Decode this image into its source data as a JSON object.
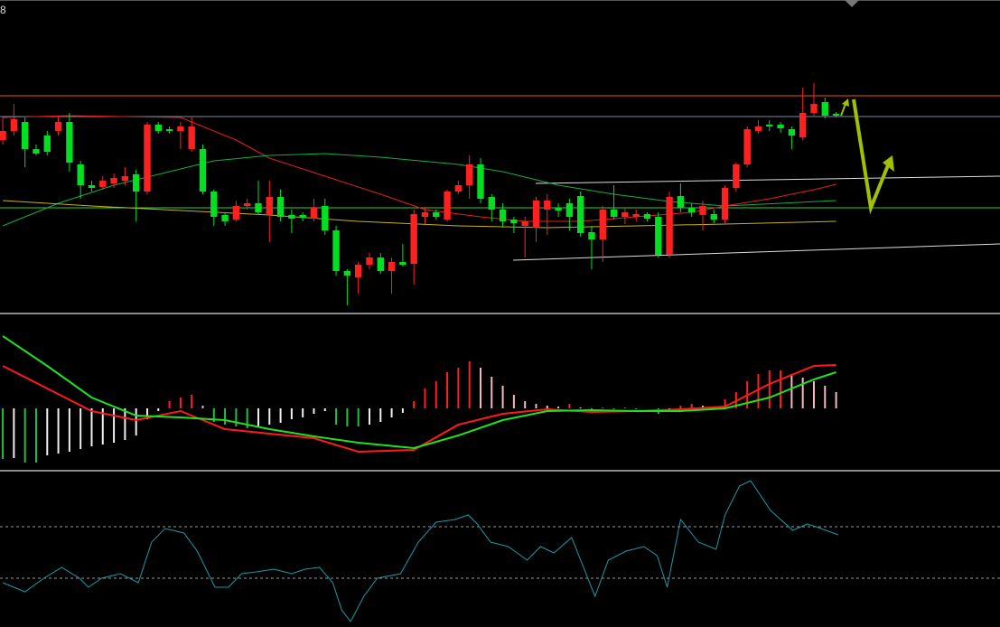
{
  "label": "8",
  "chart_data": [
    {
      "type": "candlestick",
      "xlim": [
        -0.25,
        89.75
      ],
      "ylim": [
        5,
        350
      ],
      "up_color": "#ff2020",
      "down_color": "#00e020",
      "ohlc": [
        [
          195,
          220,
          190,
          205
        ],
        [
          205,
          235,
          200,
          218
        ],
        [
          215,
          220,
          165,
          185
        ],
        [
          185,
          190,
          178,
          180
        ],
        [
          200,
          205,
          178,
          182
        ],
        [
          205,
          220,
          200,
          215
        ],
        [
          215,
          225,
          160,
          170
        ],
        [
          168,
          172,
          130,
          145
        ],
        [
          145,
          150,
          138,
          142
        ],
        [
          143,
          155,
          140,
          150
        ],
        [
          147,
          158,
          142,
          153
        ],
        [
          150,
          165,
          145,
          155
        ],
        [
          157,
          162,
          105,
          138
        ],
        [
          138,
          215,
          135,
          212
        ],
        [
          212,
          215,
          202,
          205
        ],
        [
          207,
          210,
          202,
          205
        ],
        [
          205,
          215,
          185,
          210
        ],
        [
          185,
          220,
          182,
          210
        ],
        [
          185,
          190,
          135,
          138
        ],
        [
          138,
          140,
          100,
          110
        ],
        [
          112,
          115,
          100,
          105
        ],
        [
          107,
          128,
          105,
          122
        ],
        [
          122,
          130,
          118,
          125
        ],
        [
          125,
          150,
          112,
          115
        ],
        [
          112,
          150,
          82,
          132
        ],
        [
          132,
          140,
          105,
          110
        ],
        [
          112,
          118,
          92,
          108
        ],
        [
          112,
          115,
          105,
          109
        ],
        [
          108,
          130,
          105,
          120
        ],
        [
          122,
          130,
          90,
          95
        ],
        [
          95,
          100,
          45,
          50
        ],
        [
          50,
          52,
          12,
          45
        ],
        [
          43,
          60,
          25,
          57
        ],
        [
          57,
          70,
          52,
          65
        ],
        [
          65,
          70,
          47,
          50
        ],
        [
          50,
          65,
          25,
          60
        ],
        [
          60,
          80,
          55,
          57
        ],
        [
          58,
          118,
          35,
          113
        ],
        [
          110,
          120,
          102,
          115
        ],
        [
          115,
          118,
          107,
          110
        ],
        [
          107,
          140,
          105,
          138
        ],
        [
          138,
          150,
          135,
          145
        ],
        [
          145,
          178,
          130,
          168
        ],
        [
          168,
          175,
          125,
          130
        ],
        [
          132,
          135,
          105,
          118
        ],
        [
          118,
          125,
          98,
          105
        ],
        [
          107,
          110,
          92,
          103
        ],
        [
          100,
          110,
          65,
          105
        ],
        [
          98,
          132,
          82,
          128
        ],
        [
          118,
          135,
          90,
          128
        ],
        [
          120,
          125,
          110,
          117
        ],
        [
          125,
          130,
          95,
          110
        ],
        [
          133,
          138,
          88,
          92
        ],
        [
          93,
          100,
          52,
          85
        ],
        [
          85,
          122,
          60,
          118
        ],
        [
          118,
          145,
          107,
          110
        ],
        [
          110,
          120,
          102,
          115
        ],
        [
          110,
          118,
          105,
          113
        ],
        [
          113,
          115,
          105,
          108
        ],
        [
          110,
          115,
          65,
          68
        ],
        [
          68,
          138,
          65,
          132
        ],
        [
          133,
          147,
          115,
          120
        ],
        [
          120,
          125,
          110,
          115
        ],
        [
          112,
          128,
          95,
          122
        ],
        [
          113,
          118,
          103,
          107
        ],
        [
          107,
          145,
          102,
          142
        ],
        [
          142,
          170,
          138,
          168
        ],
        [
          168,
          210,
          165,
          207
        ],
        [
          205,
          217,
          202,
          210
        ],
        [
          212,
          217,
          205,
          210
        ],
        [
          212,
          215,
          203,
          208
        ],
        [
          207,
          210,
          185,
          200
        ],
        [
          198,
          253,
          195,
          225
        ],
        [
          225,
          258,
          222,
          235
        ],
        [
          237,
          242,
          219,
          222
        ],
        [
          224,
          226,
          220,
          222
        ]
      ],
      "series": [
        {
          "color": "#e02020",
          "x": [
            0,
            6,
            16,
            21,
            24,
            29,
            34,
            38,
            43,
            47,
            52,
            57,
            62,
            65,
            69,
            73,
            75
          ],
          "values": [
            220,
            222,
            220,
            195,
            175,
            155,
            135,
            118,
            110,
            105,
            105,
            110,
            115,
            122,
            130,
            140,
            146
          ]
        },
        {
          "color": "#10b040",
          "x": [
            0,
            5,
            10,
            15,
            19,
            24,
            29,
            34,
            41,
            45,
            50,
            55,
            60,
            65,
            70,
            75
          ],
          "values": [
            100,
            125,
            145,
            160,
            172,
            178,
            180,
            176,
            168,
            160,
            145,
            135,
            127,
            122,
            125,
            128
          ]
        },
        {
          "color": "#c8b020",
          "x": [
            0,
            8,
            16,
            24,
            32,
            41,
            49,
            57,
            65,
            75
          ],
          "values": [
            128,
            122,
            117,
            112,
            105,
            100,
            98,
            100,
            102,
            105
          ]
        }
      ],
      "levels": [
        {
          "value": 244,
          "color": "#e0561a"
        },
        {
          "value": 221,
          "color": "#7a8aa0"
        },
        {
          "value": 120,
          "color": "#30d030"
        }
      ]
    },
    {
      "type": "macd",
      "xlim": [
        -0.25,
        89.75
      ],
      "ylim": [
        -68,
        102
      ],
      "bar_colors": {
        "pos_up": "#ff2020",
        "pos_down": "#f4b8c0",
        "neg_down": "#20c040",
        "neg_up": "#f0f0f0"
      },
      "values": [
        -56,
        -55,
        -60,
        -60,
        -52,
        -50,
        -48,
        -45,
        -42,
        -40,
        -38,
        -35,
        -30,
        -12,
        -3,
        8,
        12,
        15,
        3,
        -15,
        -18,
        -20,
        -22,
        -20,
        -18,
        -16,
        -12,
        -10,
        -6,
        -3,
        -18,
        -20,
        -20,
        -18,
        -15,
        -10,
        -5,
        8,
        22,
        30,
        40,
        45,
        52,
        45,
        35,
        25,
        15,
        8,
        5,
        3,
        2,
        5,
        1,
        -2,
        1,
        -1,
        1,
        -1,
        0,
        -6,
        -2,
        3,
        5,
        3,
        2,
        10,
        18,
        30,
        38,
        42,
        42,
        38,
        34,
        30,
        25,
        18
      ],
      "series": [
        {
          "color": "#ff1a1a",
          "x": [
            0,
            4,
            8,
            12,
            16,
            20,
            24,
            28,
            32,
            37,
            41,
            45,
            49,
            53,
            57,
            61,
            65,
            69,
            73,
            75
          ],
          "values": [
            47,
            22,
            -3,
            -13,
            -3,
            -23,
            -28,
            -33,
            -48,
            -46,
            -18,
            -6,
            -1,
            -4,
            -3,
            -1,
            2,
            27,
            47,
            48
          ]
        },
        {
          "color": "#20e020",
          "x": [
            0,
            4,
            8,
            12,
            16,
            20,
            24,
            28,
            32,
            37,
            41,
            45,
            49,
            53,
            57,
            61,
            65,
            69,
            73,
            75
          ],
          "values": [
            80,
            47,
            12,
            -8,
            -10,
            -13,
            -23,
            -31,
            -38,
            -44,
            -30,
            -13,
            -3,
            -2,
            -3,
            -3,
            0,
            12,
            32,
            40
          ]
        }
      ]
    },
    {
      "type": "line",
      "xlim": [
        -0.25,
        89.75
      ],
      "ylim": [
        0,
        172
      ],
      "levels": [
        {
          "value": 111,
          "color": "#999"
        },
        {
          "value": 54,
          "color": "#999"
        }
      ],
      "series": [
        {
          "color": "#1a9aa8",
          "x": [
            0,
            2,
            3.7,
            5.3,
            6.9,
            7.7,
            8.9,
            10.6,
            12.2,
            13.4,
            14.6,
            16.3,
            17.5,
            19.1,
            20.3,
            21.5,
            22.8,
            24.4,
            26,
            27.2,
            28.5,
            29.7,
            30.5,
            31.3,
            32.5,
            33.7,
            35.8,
            37.4,
            39,
            40.7,
            41.9,
            42.7,
            43.9,
            45.5,
            47.2,
            48.4,
            49.6,
            51.2,
            53.3,
            54.5,
            56.1,
            57.7,
            58.9,
            59.8,
            61,
            62.6,
            64.2,
            65,
            66.3,
            67.3,
            69.1,
            71.1,
            72.4,
            73.2,
            75.2
          ],
          "values": [
            49,
            39,
            54,
            66,
            54,
            44,
            54,
            59,
            49,
            94,
            109,
            104,
            84,
            44,
            44,
            59,
            61,
            64,
            59,
            64,
            66,
            49,
            19,
            6,
            34,
            54,
            59,
            94,
            116,
            119,
            124,
            114,
            94,
            89,
            74,
            89,
            82,
            99,
            34,
            74,
            84,
            89,
            79,
            44,
            119,
            94,
            86,
            124,
            156,
            162,
            129,
            107,
            114,
            111,
            102
          ]
        }
      ]
    }
  ]
}
